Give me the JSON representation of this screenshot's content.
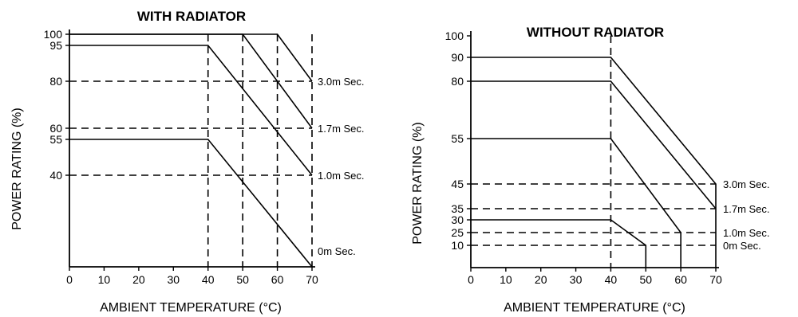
{
  "chart_data": [
    {
      "type": "line",
      "title": "WITH RADIATOR",
      "xlabel": "AMBIENT TEMPERATURE (°C)",
      "ylabel": "POWER RATING (%)",
      "xlim": [
        0,
        70
      ],
      "x_ticks": [
        "0",
        "10",
        "20",
        "30",
        "40",
        "50",
        "60",
        "70"
      ],
      "y_ticks": [
        {
          "value": 100,
          "label": "100"
        },
        {
          "value": 95,
          "label": "95"
        },
        {
          "value": 80,
          "label": "80"
        },
        {
          "value": 60,
          "label": "60"
        },
        {
          "value": 55,
          "label": "55"
        },
        {
          "value": 40,
          "label": "40"
        }
      ],
      "y_axis_breaks": [
        100,
        95,
        80,
        60,
        55,
        40,
        0
      ],
      "vertical_refs": [
        40,
        50,
        60,
        70
      ],
      "horizontal_refs": [
        80,
        60,
        40
      ],
      "series": [
        {
          "name": "3.0m Sec.",
          "points": [
            [
              0,
              100
            ],
            [
              60,
              100
            ],
            [
              70,
              80
            ]
          ],
          "label_y": 80
        },
        {
          "name": "1.7m Sec.",
          "points": [
            [
              0,
              100
            ],
            [
              50,
              100
            ],
            [
              70,
              60
            ]
          ],
          "label_y": 60
        },
        {
          "name": "1.0m Sec.",
          "points": [
            [
              0,
              95
            ],
            [
              40,
              95
            ],
            [
              70,
              40
            ]
          ],
          "label_y": 40
        },
        {
          "name": "0m Sec.",
          "points": [
            [
              0,
              55
            ],
            [
              40,
              55
            ],
            [
              70,
              0
            ]
          ],
          "label_y": 7
        }
      ]
    },
    {
      "type": "line",
      "title": "WITHOUT RADIATOR",
      "xlabel": "AMBIENT TEMPERATURE (°C)",
      "ylabel": "POWER RATING (%)",
      "xlim": [
        0,
        70
      ],
      "x_ticks": [
        "0",
        "10",
        "20",
        "30",
        "40",
        "50",
        "60",
        "70"
      ],
      "y_ticks": [
        {
          "value": 100,
          "label": "100"
        },
        {
          "value": 90,
          "label": "90"
        },
        {
          "value": 80,
          "label": "80"
        },
        {
          "value": 55,
          "label": "55"
        },
        {
          "value": 45,
          "label": "45"
        },
        {
          "value": 35,
          "label": "35"
        },
        {
          "value": 30,
          "label": "30"
        },
        {
          "value": 25,
          "label": "25"
        },
        {
          "value": 10,
          "label": "10"
        }
      ],
      "y_axis_breaks": [
        100,
        90,
        80,
        55,
        45,
        35,
        30,
        25,
        10,
        0
      ],
      "vertical_refs": [
        40
      ],
      "horizontal_refs": [
        45,
        35,
        25,
        10
      ],
      "series": [
        {
          "name": "3.0m Sec.",
          "points": [
            [
              0,
              90
            ],
            [
              40,
              90
            ],
            [
              70,
              45
            ],
            [
              70,
              0
            ]
          ],
          "label_y": 45
        },
        {
          "name": "1.7m Sec.",
          "points": [
            [
              0,
              80
            ],
            [
              40,
              80
            ],
            [
              70,
              35
            ]
          ],
          "label_y": 35
        },
        {
          "name": "1.0m Sec.",
          "points": [
            [
              0,
              55
            ],
            [
              40,
              55
            ],
            [
              60,
              25
            ],
            [
              60,
              0
            ]
          ],
          "label_y": 25
        },
        {
          "name": "0m Sec.",
          "points": [
            [
              0,
              30
            ],
            [
              40,
              30
            ],
            [
              50,
              10
            ],
            [
              50,
              0
            ]
          ],
          "label_y": 10
        }
      ]
    }
  ]
}
